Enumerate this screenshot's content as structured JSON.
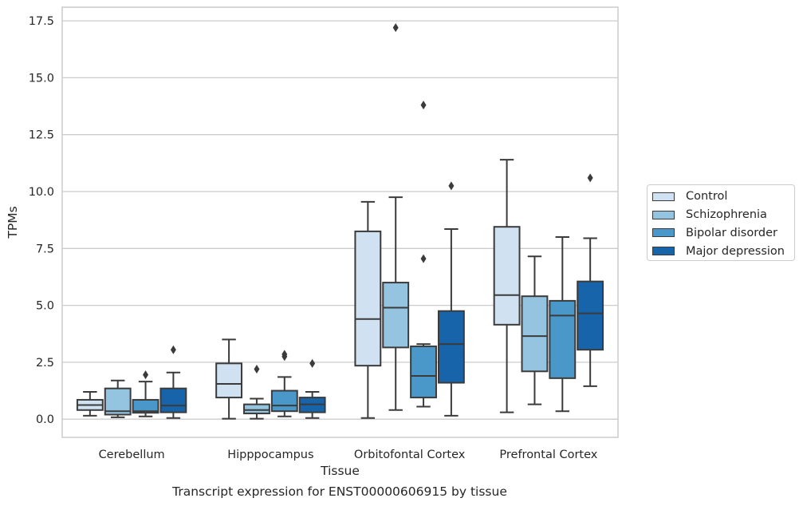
{
  "chart_data": {
    "type": "box",
    "xlabel": "Tissue",
    "ylabel": "TPMs",
    "ylim": [
      -0.8,
      18.1
    ],
    "yticks": [
      0.0,
      2.5,
      5.0,
      7.5,
      10.0,
      12.5,
      15.0,
      17.5
    ],
    "ytick_labels": [
      "0.0",
      "2.5",
      "5.0",
      "7.5",
      "10.0",
      "12.5",
      "15.0",
      "17.5"
    ],
    "grid": "horizontal",
    "legend_position": "right-outside",
    "categories": [
      "Cerebellum",
      "Hipppocampus",
      "Orbitofontal Cortex",
      "Prefrontal Cortex"
    ],
    "series": [
      {
        "name": "Control",
        "color": "#d0e1f2",
        "boxes": [
          {
            "whisker_low": 0.15,
            "q1": 0.4,
            "median": 0.62,
            "q3": 0.85,
            "whisker_high": 1.2,
            "outliers": []
          },
          {
            "whisker_low": 0.02,
            "q1": 0.95,
            "median": 1.55,
            "q3": 2.45,
            "whisker_high": 3.5,
            "outliers": []
          },
          {
            "whisker_low": 0.05,
            "q1": 2.35,
            "median": 4.4,
            "q3": 8.25,
            "whisker_high": 9.55,
            "outliers": []
          },
          {
            "whisker_low": 0.3,
            "q1": 4.15,
            "median": 5.45,
            "q3": 8.45,
            "whisker_high": 11.4,
            "outliers": []
          }
        ]
      },
      {
        "name": "Schizophrenia",
        "color": "#94c4df",
        "boxes": [
          {
            "whisker_low": 0.08,
            "q1": 0.2,
            "median": 0.35,
            "q3": 1.35,
            "whisker_high": 1.7,
            "outliers": []
          },
          {
            "whisker_low": 0.02,
            "q1": 0.25,
            "median": 0.4,
            "q3": 0.65,
            "whisker_high": 0.9,
            "outliers": [
              2.2
            ]
          },
          {
            "whisker_low": 0.4,
            "q1": 3.15,
            "median": 4.9,
            "q3": 6.0,
            "whisker_high": 9.75,
            "outliers": [
              17.2
            ]
          },
          {
            "whisker_low": 0.65,
            "q1": 2.1,
            "median": 3.65,
            "q3": 5.4,
            "whisker_high": 7.15,
            "outliers": []
          }
        ]
      },
      {
        "name": "Bipolar disorder",
        "color": "#4a98c9",
        "boxes": [
          {
            "whisker_low": 0.12,
            "q1": 0.28,
            "median": 0.35,
            "q3": 0.85,
            "whisker_high": 1.65,
            "outliers": [
              1.95
            ]
          },
          {
            "whisker_low": 0.12,
            "q1": 0.35,
            "median": 0.6,
            "q3": 1.25,
            "whisker_high": 1.85,
            "outliers": [
              2.75,
              2.85
            ]
          },
          {
            "whisker_low": 0.55,
            "q1": 0.95,
            "median": 1.9,
            "q3": 3.2,
            "whisker_high": 3.3,
            "outliers": [
              7.05,
              13.8
            ]
          },
          {
            "whisker_low": 0.35,
            "q1": 1.8,
            "median": 4.55,
            "q3": 5.2,
            "whisker_high": 8.0,
            "outliers": []
          }
        ]
      },
      {
        "name": "Major depression",
        "color": "#1764ab",
        "boxes": [
          {
            "whisker_low": 0.05,
            "q1": 0.3,
            "median": 0.6,
            "q3": 1.35,
            "whisker_high": 2.05,
            "outliers": [
              3.05
            ]
          },
          {
            "whisker_low": 0.05,
            "q1": 0.3,
            "median": 0.65,
            "q3": 0.95,
            "whisker_high": 1.2,
            "outliers": [
              2.45
            ]
          },
          {
            "whisker_low": 0.15,
            "q1": 1.6,
            "median": 3.3,
            "q3": 4.75,
            "whisker_high": 8.35,
            "outliers": [
              10.25
            ]
          },
          {
            "whisker_low": 1.45,
            "q1": 3.05,
            "median": 4.65,
            "q3": 6.05,
            "whisker_high": 7.95,
            "outliers": [
              10.6
            ]
          }
        ]
      }
    ],
    "caption": "Transcript expression for ENST00000606915 by tissue"
  }
}
